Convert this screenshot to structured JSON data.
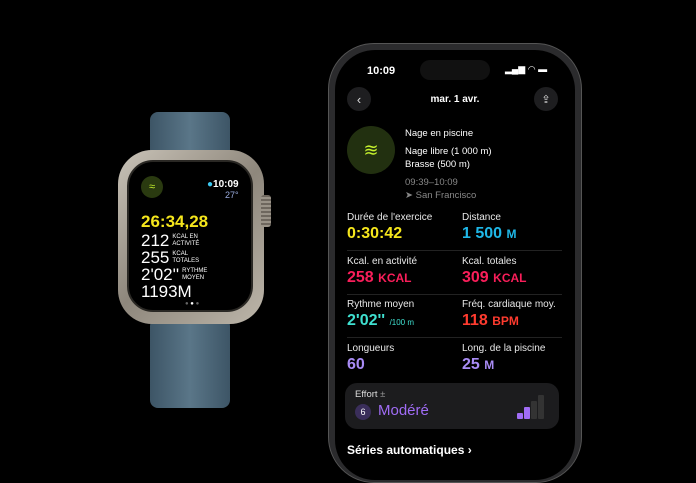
{
  "watch": {
    "time": "10:09",
    "temperature": "27°",
    "elapsed": "26:34,28",
    "active_kcal": "212",
    "active_kcal_label_1": "KCAL EN",
    "active_kcal_label_2": "ACTIVITÉ",
    "total_kcal": "255",
    "total_kcal_label_1": "KCAL",
    "total_kcal_label_2": "TOTALES",
    "pace": "2'02''",
    "pace_label_1": "RYTHME",
    "pace_label_2": "MOYEN",
    "distance": "1193M",
    "icons": [
      "swimmer-icon",
      "water-drop-icon"
    ]
  },
  "phone": {
    "status": {
      "time": "10:09"
    },
    "header": {
      "date": "mar. 1 avr."
    },
    "workout": {
      "type": "Nage en piscine",
      "stroke_1": "Nage libre (1 000 m)",
      "stroke_2": "Brasse (500 m)",
      "time_range": "09:39–10:09",
      "location": "San Francisco"
    },
    "metrics": [
      {
        "label": "Durée de l'exercice",
        "value": "0:30:42",
        "unit": "",
        "color": "#f5e61c"
      },
      {
        "label": "Distance",
        "value": "1 500",
        "unit": "M",
        "color": "#1fb8e8"
      },
      {
        "label": "Kcal. en activité",
        "value": "258",
        "unit": "KCAL",
        "color": "#fa1e5a"
      },
      {
        "label": "Kcal. totales",
        "value": "309",
        "unit": "KCAL",
        "color": "#fa1e5a"
      },
      {
        "label": "Rythme moyen",
        "value": "2'02''",
        "unit": "/100 m",
        "color": "#3fe0d0"
      },
      {
        "label": "Fréq. cardiaque moy.",
        "value": "118",
        "unit": "BPM",
        "color": "#ff3b2f"
      },
      {
        "label": "Longueurs",
        "value": "60",
        "unit": "",
        "color": "#a98cf5"
      },
      {
        "label": "Long. de la piscine",
        "value": "25",
        "unit": "M",
        "color": "#a98cf5"
      }
    ],
    "effort": {
      "label": "Effort",
      "plusminus": "±",
      "score": "6",
      "level": "Modéré",
      "color": "#a06cf5",
      "bars_filled": 2,
      "bars_total": 4
    },
    "next_section": "Séries automatiques",
    "accent": "#c6f22e"
  }
}
